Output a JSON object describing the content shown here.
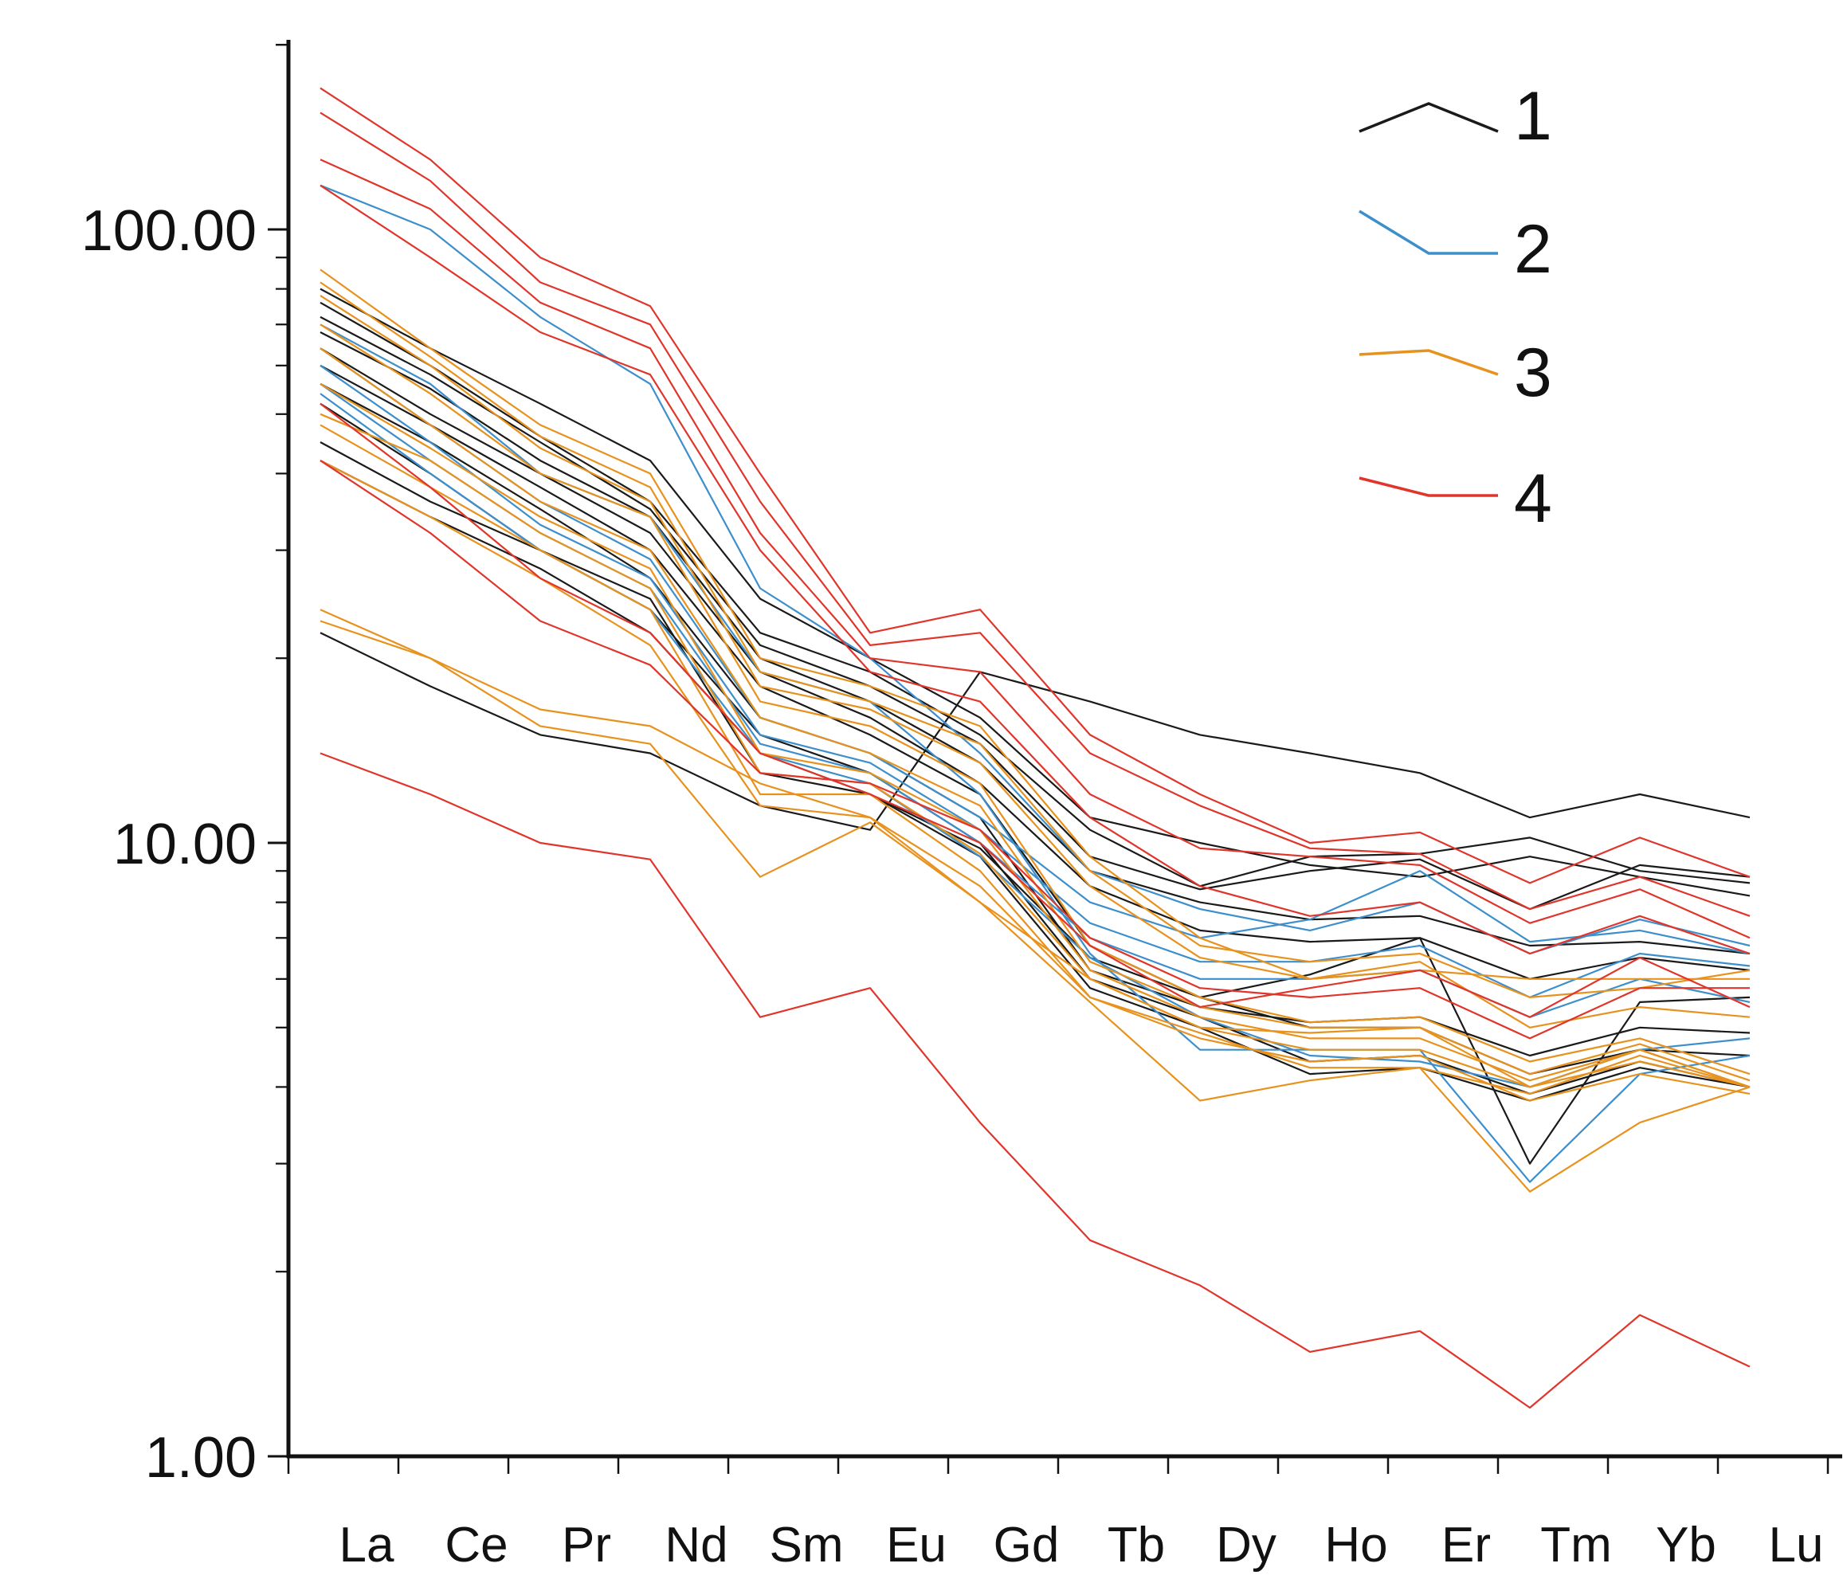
{
  "chart_data": {
    "type": "line",
    "title": "",
    "xlabel": "",
    "ylabel": "",
    "y_scale": "log",
    "ylim": [
      1,
      200
    ],
    "grid": false,
    "legend_position": "top-right",
    "categories": [
      "La",
      "Ce",
      "Pr",
      "Nd",
      "Sm",
      "Eu",
      "Gd",
      "Tb",
      "Dy",
      "Ho",
      "Er",
      "Tm",
      "Yb",
      "Lu"
    ],
    "y_tick_labels": [
      {
        "value": 1,
        "label": "1.00"
      },
      {
        "value": 10,
        "label": "10.00"
      },
      {
        "value": 100,
        "label": "100.00"
      }
    ],
    "groups": [
      {
        "legend_label": "1",
        "color": "#1a1a1a"
      },
      {
        "legend_label": "2",
        "color": "#3d8fcc"
      },
      {
        "legend_label": "3",
        "color": "#e8921e"
      },
      {
        "legend_label": "4",
        "color": "#e0352b"
      }
    ],
    "series": [
      {
        "group": "1",
        "values": [
          80,
          64,
          52,
          42,
          25,
          20,
          16,
          11,
          10,
          9.2,
          8.8,
          9.5,
          8.8,
          8.2
        ]
      },
      {
        "group": "1",
        "values": [
          76,
          60,
          46,
          36,
          22,
          19,
          15,
          10.5,
          8.5,
          9.5,
          9.6,
          10.2,
          9.0,
          8.6
        ]
      },
      {
        "group": "1",
        "values": [
          72,
          58,
          45,
          35,
          21,
          18,
          14.5,
          9.5,
          8.4,
          9.0,
          9.4,
          7.8,
          9.2,
          8.8
        ]
      },
      {
        "group": "1",
        "values": [
          68,
          55,
          42,
          34,
          20,
          17,
          13.5,
          9.0,
          8.0,
          7.5,
          7.6,
          6.8,
          6.9,
          6.6
        ]
      },
      {
        "group": "1",
        "values": [
          64,
          50,
          40,
          32,
          19,
          16,
          12.5,
          8.5,
          7.2,
          6.9,
          7.0,
          6.0,
          6.5,
          6.2
        ]
      },
      {
        "group": "1",
        "values": [
          60,
          48,
          38,
          30,
          18,
          15,
          12.0,
          6.8,
          5.6,
          6.1,
          7.0,
          3.0,
          5.5,
          5.6
        ]
      },
      {
        "group": "1",
        "values": [
          56,
          45,
          35,
          27,
          16,
          14,
          11.0,
          6.2,
          5.4,
          5.1,
          5.2,
          4.5,
          5.0,
          4.9
        ]
      },
      {
        "group": "1",
        "values": [
          45,
          36,
          30,
          24,
          15,
          13,
          10.0,
          6.0,
          5.2,
          4.4,
          4.5,
          3.9,
          4.4,
          4.0
        ]
      },
      {
        "group": "1",
        "values": [
          42,
          34,
          28,
          22,
          14,
          12,
          9.5,
          5.8,
          5.0,
          4.2,
          4.3,
          3.8,
          4.3,
          4.0
        ]
      },
      {
        "group": "1",
        "values": [
          52,
          40,
          30,
          25,
          13,
          12,
          9.8,
          6.5,
          5.6,
          5.0,
          5.0,
          4.2,
          4.6,
          4.5
        ]
      },
      {
        "group": "1",
        "values": [
          22,
          18,
          15,
          14,
          11.5,
          10.5,
          19,
          17,
          15,
          14,
          13,
          11,
          12,
          11
        ]
      },
      {
        "group": "2",
        "values": [
          118,
          100,
          72,
          56,
          26,
          20,
          14,
          9.0,
          7.8,
          7.2,
          8.0,
          6.6,
          7.5,
          6.8
        ]
      },
      {
        "group": "2",
        "values": [
          64,
          48,
          36,
          29,
          16,
          14,
          11,
          8.0,
          7.0,
          7.5,
          9.0,
          6.9,
          7.2,
          6.6
        ]
      },
      {
        "group": "2",
        "values": [
          60,
          45,
          33,
          27,
          15,
          13.5,
          10.5,
          7.4,
          6.4,
          6.4,
          6.8,
          5.6,
          6.6,
          6.3
        ]
      },
      {
        "group": "2",
        "values": [
          56,
          42,
          32,
          26,
          14.5,
          13,
          10,
          7.0,
          6.0,
          6.0,
          6.2,
          5.2,
          6.0,
          5.5
        ]
      },
      {
        "group": "2",
        "values": [
          54,
          40,
          30,
          24,
          14,
          12.5,
          9.5,
          6.5,
          5.2,
          4.5,
          4.4,
          4.0,
          4.6,
          4.8
        ]
      },
      {
        "group": "2",
        "values": [
          70,
          56,
          40,
          34,
          19,
          17,
          12,
          6.6,
          4.6,
          4.6,
          4.6,
          2.8,
          4.2,
          4.5
        ]
      },
      {
        "group": "3",
        "values": [
          86,
          64,
          48,
          40,
          20,
          18,
          15.5,
          9.5,
          7.0,
          6.0,
          6.2,
          6.0,
          6.0,
          6.0
        ]
      },
      {
        "group": "3",
        "values": [
          82,
          62,
          46,
          38,
          19,
          17,
          14.5,
          9.0,
          6.8,
          6.4,
          6.6,
          5.6,
          5.8,
          6.2
        ]
      },
      {
        "group": "3",
        "values": [
          78,
          60,
          44,
          36,
          18,
          16.5,
          13.5,
          8.5,
          6.5,
          6.0,
          6.4,
          5.0,
          5.4,
          5.2
        ]
      },
      {
        "group": "3",
        "values": [
          70,
          54,
          40,
          34,
          17,
          15.5,
          12.5,
          6.8,
          5.6,
          5.1,
          5.2,
          4.4,
          4.8,
          4.2
        ]
      },
      {
        "group": "3",
        "values": [
          64,
          48,
          36,
          30,
          16,
          14,
          11.5,
          6.4,
          5.4,
          5.0,
          5.0,
          4.2,
          4.7,
          4.1
        ]
      },
      {
        "group": "3",
        "values": [
          56,
          44,
          34,
          28,
          14,
          13,
          10.5,
          6.2,
          5.2,
          4.8,
          4.8,
          4.1,
          4.6,
          4.0
        ]
      },
      {
        "group": "3",
        "values": [
          50,
          42,
          32,
          26,
          13,
          12.5,
          9.6,
          6.0,
          5.0,
          4.6,
          4.6,
          4.0,
          4.4,
          4.0
        ]
      },
      {
        "group": "3",
        "values": [
          48,
          38,
          30,
          24,
          12,
          12,
          9.0,
          5.6,
          4.9,
          4.3,
          4.3,
          3.9,
          4.5,
          4.0
        ]
      },
      {
        "group": "3",
        "values": [
          42,
          34,
          27,
          21,
          11.5,
          11,
          8.0,
          5.5,
          3.8,
          4.1,
          4.3,
          2.7,
          3.5,
          4.0
        ]
      },
      {
        "group": "3",
        "values": [
          24,
          20,
          16.5,
          15.5,
          12.5,
          11,
          8.5,
          5.6,
          4.8,
          4.4,
          4.5,
          3.8,
          4.2,
          3.9
        ]
      },
      {
        "group": "3",
        "values": [
          23,
          20,
          15.5,
          14.5,
          8.8,
          10.8,
          8.0,
          6.0,
          5.0,
          4.9,
          5.0,
          4.0,
          4.6,
          4.0
        ]
      },
      {
        "group": "4",
        "values": [
          170,
          130,
          90,
          75,
          40,
          22,
          24,
          15,
          12,
          10,
          10.4,
          8.6,
          10.2,
          8.8
        ]
      },
      {
        "group": "4",
        "values": [
          155,
          120,
          82,
          70,
          36,
          21,
          22,
          14,
          11.5,
          9.8,
          9.6,
          7.8,
          8.8,
          7.6
        ]
      },
      {
        "group": "4",
        "values": [
          130,
          108,
          76,
          64,
          32,
          20,
          19,
          12,
          9.8,
          9.5,
          9.2,
          7.4,
          8.4,
          7.0
        ]
      },
      {
        "group": "4",
        "values": [
          118,
          90,
          68,
          58,
          30,
          19,
          17,
          11,
          8.5,
          7.6,
          8.0,
          6.6,
          7.6,
          6.6
        ]
      },
      {
        "group": "4",
        "values": [
          52,
          38,
          27,
          22,
          14,
          12,
          10,
          6.8,
          5.4,
          5.8,
          6.2,
          5.2,
          6.5,
          5.4
        ]
      },
      {
        "group": "4",
        "values": [
          42,
          32,
          23,
          19.5,
          13,
          12.5,
          10.5,
          7.0,
          5.8,
          5.6,
          5.8,
          4.8,
          5.8,
          5.8
        ]
      },
      {
        "group": "4",
        "values": [
          14,
          12,
          10,
          9.4,
          5.2,
          5.8,
          3.5,
          2.25,
          1.9,
          1.48,
          1.6,
          1.2,
          1.7,
          1.4
        ]
      }
    ]
  }
}
